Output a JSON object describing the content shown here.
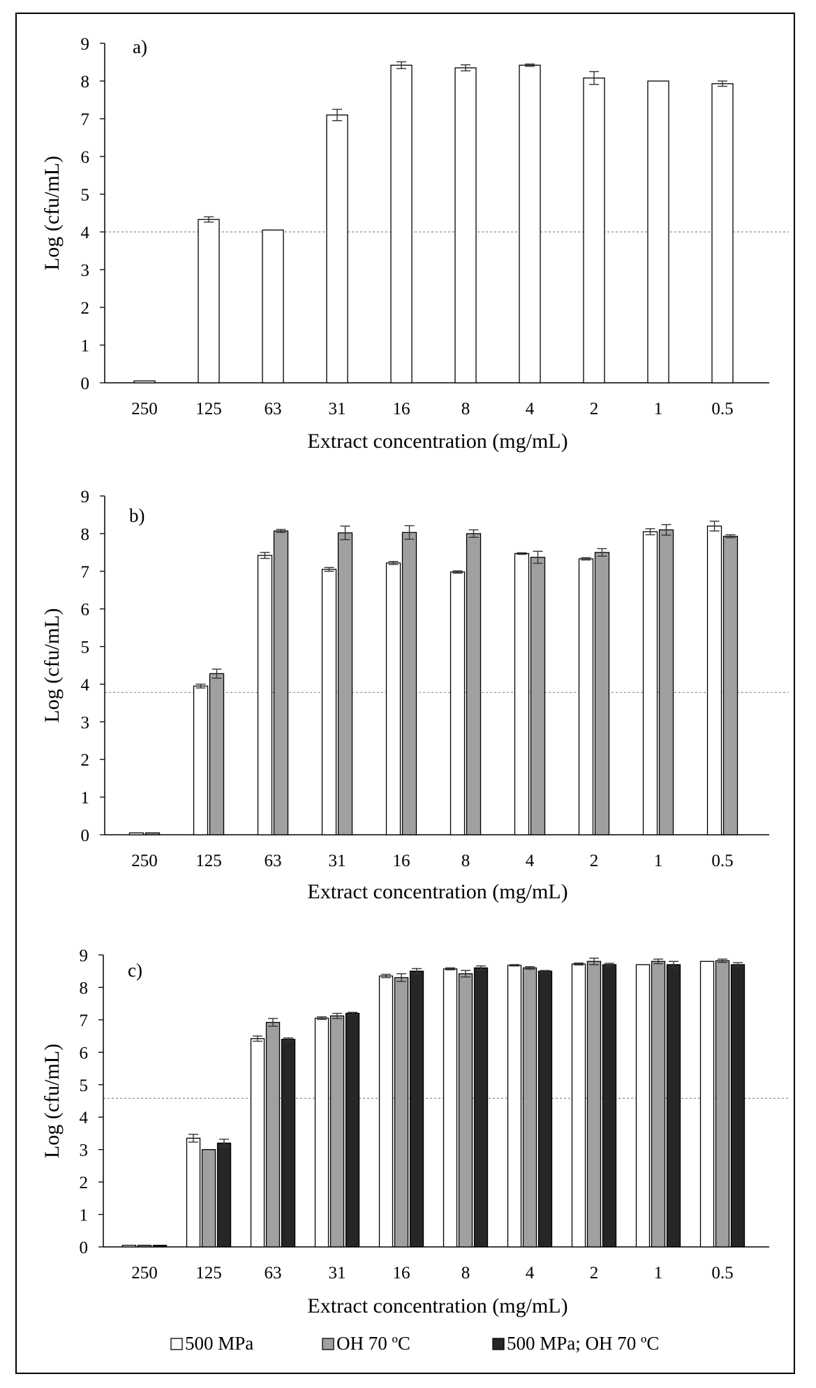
{
  "figure": {
    "colors": {
      "s500": "#ffffff",
      "sOH": "#a0a0a0",
      "sBoth": "#262626",
      "axis": "#000000",
      "ref": "#8c8c8c"
    }
  },
  "chart_data": [
    {
      "type": "bar",
      "panel_label": "a)",
      "xlabel": "Extract concentration (mg/mL)",
      "ylabel": "Log (cfu/mL)",
      "ylim": [
        0,
        9
      ],
      "yticks": [
        "0",
        "1",
        "2",
        "3",
        "4",
        "5",
        "6",
        "7",
        "8",
        "9"
      ],
      "categories": [
        "250",
        "125",
        "63",
        "31",
        "16",
        "8",
        "4",
        "2",
        "1",
        "0.5"
      ],
      "reference_line": 4.0,
      "series": [
        {
          "name": "500 MPa",
          "color": "#ffffff",
          "values": [
            0.05,
            4.33,
            4.05,
            7.1,
            8.42,
            8.35,
            8.42,
            8.08,
            8.0,
            7.93
          ],
          "errors": [
            0,
            0.07,
            0,
            0.15,
            0.09,
            0.08,
            0.03,
            0.17,
            0,
            0.07
          ]
        }
      ]
    },
    {
      "type": "bar",
      "panel_label": "b)",
      "xlabel": "Extract concentration (mg/mL)",
      "ylabel": "Log (cfu/mL)",
      "ylim": [
        0,
        9
      ],
      "yticks": [
        "0",
        "1",
        "2",
        "3",
        "4",
        "5",
        "6",
        "7",
        "8",
        "9"
      ],
      "categories": [
        "250",
        "125",
        "63",
        "31",
        "16",
        "8",
        "4",
        "2",
        "1",
        "0.5"
      ],
      "reference_line": 3.78,
      "series": [
        {
          "name": "500 MPa",
          "color": "#ffffff",
          "values": [
            0.05,
            3.95,
            7.42,
            7.05,
            7.22,
            6.98,
            7.47,
            7.33,
            8.05,
            8.2
          ],
          "errors": [
            0,
            0.05,
            0.08,
            0.05,
            0.04,
            0.03,
            0.02,
            0.03,
            0.08,
            0.13
          ]
        },
        {
          "name": "OH 70 ºC",
          "color": "#a0a0a0",
          "values": [
            0.05,
            4.28,
            8.07,
            8.02,
            8.03,
            8.0,
            7.37,
            7.5,
            8.1,
            7.93
          ],
          "errors": [
            0,
            0.12,
            0.04,
            0.18,
            0.18,
            0.1,
            0.16,
            0.1,
            0.14,
            0.04
          ]
        }
      ]
    },
    {
      "type": "bar",
      "panel_label": "c)",
      "xlabel": "Extract concentration (mg/mL)",
      "ylabel": "Log (cfu/mL)",
      "ylim": [
        0,
        9
      ],
      "yticks": [
        "0",
        "1",
        "2",
        "3",
        "4",
        "5",
        "6",
        "7",
        "8",
        "9"
      ],
      "categories": [
        "250",
        "125",
        "63",
        "31",
        "16",
        "8",
        "4",
        "2",
        "1",
        "0.5"
      ],
      "reference_line": 4.58,
      "series": [
        {
          "name": "500 MPa",
          "color": "#ffffff",
          "values": [
            0.05,
            3.35,
            6.42,
            7.05,
            8.35,
            8.57,
            8.68,
            8.72,
            8.7,
            8.8
          ],
          "errors": [
            0,
            0.12,
            0.08,
            0.04,
            0.05,
            0.03,
            0.02,
            0.03,
            0,
            0
          ]
        },
        {
          "name": "OH 70 ºC",
          "color": "#a0a0a0",
          "values": [
            0.05,
            3.0,
            6.92,
            7.12,
            8.3,
            8.42,
            8.6,
            8.8,
            8.8,
            8.82
          ],
          "errors": [
            0,
            0,
            0.12,
            0.08,
            0.12,
            0.1,
            0.04,
            0.1,
            0.07,
            0.05
          ]
        },
        {
          "name": "500 MPa; OH 70 ºC",
          "color": "#262626",
          "values": [
            0.05,
            3.2,
            6.4,
            7.2,
            8.5,
            8.6,
            8.5,
            8.7,
            8.7,
            8.7
          ],
          "errors": [
            0,
            0.12,
            0.04,
            0.03,
            0.08,
            0.06,
            0.02,
            0.04,
            0.1,
            0.06
          ]
        }
      ]
    }
  ],
  "legend": [
    {
      "label": "500 MPa",
      "color": "#ffffff"
    },
    {
      "label": "OH 70 ºC",
      "color": "#a0a0a0"
    },
    {
      "label": "500 MPa; OH 70 ºC",
      "color": "#262626"
    }
  ]
}
